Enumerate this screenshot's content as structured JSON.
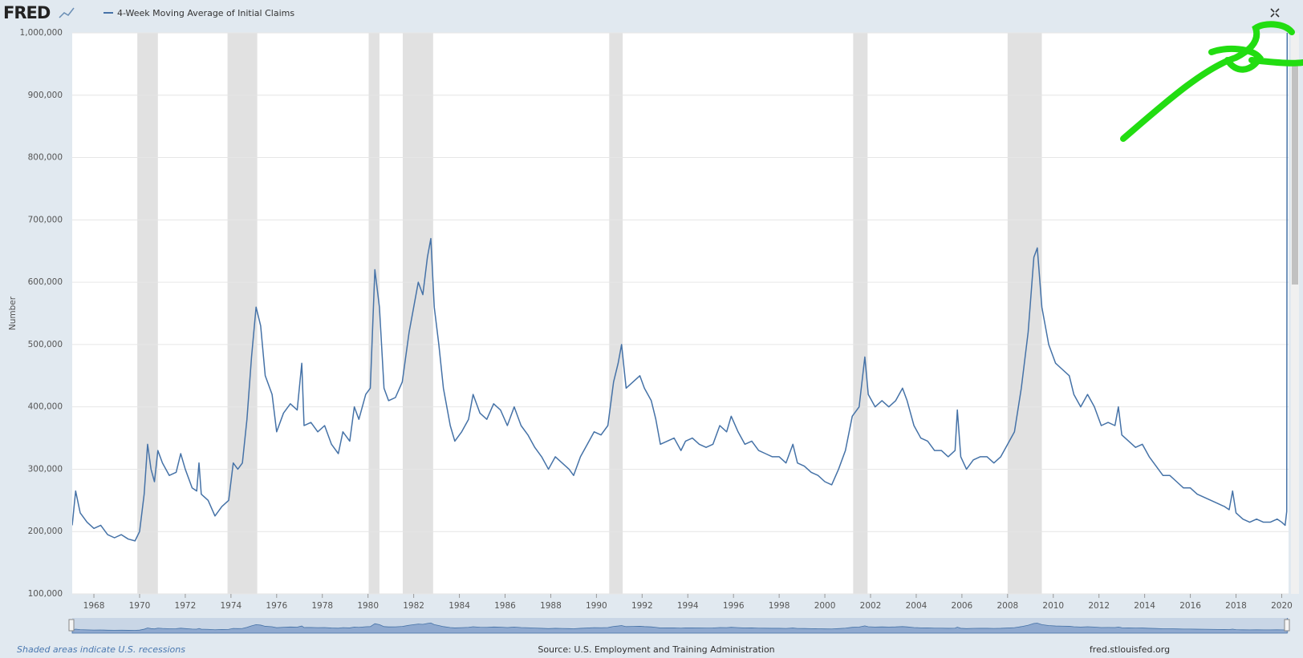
{
  "chart_data": {
    "type": "line",
    "logo": "FRED",
    "y_label": "Number",
    "recession_note": "Shaded areas indicate U.S. recessions",
    "source": "Source: U.S. Employment and Training Administration",
    "site": "fred.stlouisfed.org",
    "xlim": [
      1967.05,
      2020.3
    ],
    "ylim": [
      100000,
      1000000
    ],
    "xticks": [
      1968,
      1970,
      1972,
      1974,
      1976,
      1978,
      1980,
      1982,
      1984,
      1986,
      1988,
      1990,
      1992,
      1994,
      1996,
      1998,
      2000,
      2002,
      2004,
      2006,
      2008,
      2010,
      2012,
      2014,
      2016,
      2018,
      2020
    ],
    "yticks": [
      {
        "value": 100000,
        "label": "100,000"
      },
      {
        "value": 200000,
        "label": "200,000"
      },
      {
        "value": 300000,
        "label": "300,000"
      },
      {
        "value": 400000,
        "label": "400,000"
      },
      {
        "value": 500000,
        "label": "500,000"
      },
      {
        "value": 600000,
        "label": "600,000"
      },
      {
        "value": 700000,
        "label": "700,000"
      },
      {
        "value": 800000,
        "label": "800,000"
      },
      {
        "value": 900000,
        "label": "900,000"
      },
      {
        "value": 1000000,
        "label": "1,000,000"
      }
    ],
    "grid": true,
    "recession_color": "#e1e1e1",
    "recessions": [
      [
        1969.9,
        1970.8
      ],
      [
        1973.85,
        1975.15
      ],
      [
        1980.03,
        1980.5
      ],
      [
        1981.52,
        1982.85
      ],
      [
        1990.56,
        1991.15
      ],
      [
        2001.24,
        2001.87
      ],
      [
        2008.0,
        2009.5
      ]
    ],
    "x": [
      1967.05,
      1967.2,
      1967.4,
      1967.7,
      1968.0,
      1968.3,
      1968.6,
      1968.9,
      1969.2,
      1969.5,
      1969.8,
      1970.0,
      1970.2,
      1970.35,
      1970.5,
      1970.65,
      1970.8,
      1971.0,
      1971.3,
      1971.6,
      1971.8,
      1972.0,
      1972.3,
      1972.5,
      1972.6,
      1972.7,
      1973.0,
      1973.3,
      1973.6,
      1973.9,
      1974.1,
      1974.3,
      1974.5,
      1974.7,
      1974.9,
      1975.1,
      1975.3,
      1975.5,
      1975.8,
      1976.0,
      1976.3,
      1976.6,
      1976.9,
      1977.1,
      1977.2,
      1977.5,
      1977.8,
      1978.1,
      1978.4,
      1978.7,
      1978.9,
      1979.2,
      1979.4,
      1979.6,
      1979.9,
      1980.1,
      1980.3,
      1980.5,
      1980.7,
      1980.9,
      1981.2,
      1981.5,
      1981.8,
      1982.0,
      1982.2,
      1982.4,
      1982.6,
      1982.75,
      1982.9,
      1983.1,
      1983.3,
      1983.6,
      1983.8,
      1984.1,
      1984.4,
      1984.6,
      1984.9,
      1985.2,
      1985.5,
      1985.8,
      1986.1,
      1986.4,
      1986.7,
      1987.0,
      1987.3,
      1987.6,
      1987.9,
      1988.2,
      1988.5,
      1988.8,
      1989.0,
      1989.3,
      1989.6,
      1989.9,
      1990.2,
      1990.5,
      1990.75,
      1990.95,
      1991.1,
      1991.3,
      1991.6,
      1991.9,
      1992.1,
      1992.4,
      1992.6,
      1992.8,
      1993.1,
      1993.4,
      1993.7,
      1993.9,
      1994.2,
      1994.5,
      1994.8,
      1995.1,
      1995.4,
      1995.7,
      1995.9,
      1996.2,
      1996.5,
      1996.8,
      1997.1,
      1997.4,
      1997.7,
      1998.0,
      1998.3,
      1998.6,
      1998.8,
      1999.1,
      1999.4,
      1999.7,
      2000.0,
      2000.3,
      2000.6,
      2000.9,
      2001.2,
      2001.5,
      2001.75,
      2001.9,
      2002.2,
      2002.5,
      2002.8,
      2003.1,
      2003.4,
      2003.6,
      2003.9,
      2004.2,
      2004.5,
      2004.8,
      2005.1,
      2005.4,
      2005.7,
      2005.8,
      2005.95,
      2006.2,
      2006.5,
      2006.8,
      2007.1,
      2007.4,
      2007.7,
      2008.0,
      2008.3,
      2008.6,
      2008.9,
      2009.15,
      2009.3,
      2009.5,
      2009.8,
      2010.1,
      2010.4,
      2010.7,
      2010.9,
      2011.2,
      2011.5,
      2011.8,
      2012.1,
      2012.4,
      2012.7,
      2012.85,
      2013.0,
      2013.3,
      2013.6,
      2013.9,
      2014.2,
      2014.5,
      2014.8,
      2015.1,
      2015.4,
      2015.7,
      2016.0,
      2016.3,
      2016.6,
      2016.9,
      2017.2,
      2017.5,
      2017.7,
      2017.85,
      2018.0,
      2018.3,
      2018.6,
      2018.9,
      2019.2,
      2019.5,
      2019.8,
      2020.0,
      2020.15,
      2020.22,
      2020.24
    ],
    "series": [
      {
        "name": "4-Week Moving Average of Initial Claims",
        "color": "#4572a7",
        "values": [
          210000,
          265000,
          230000,
          215000,
          205000,
          210000,
          195000,
          190000,
          195000,
          188000,
          185000,
          200000,
          260000,
          340000,
          300000,
          280000,
          330000,
          310000,
          290000,
          295000,
          325000,
          300000,
          270000,
          265000,
          310000,
          260000,
          250000,
          225000,
          240000,
          250000,
          310000,
          300000,
          310000,
          380000,
          480000,
          560000,
          530000,
          450000,
          420000,
          360000,
          390000,
          405000,
          395000,
          470000,
          370000,
          375000,
          360000,
          370000,
          340000,
          325000,
          360000,
          345000,
          400000,
          380000,
          420000,
          430000,
          620000,
          560000,
          430000,
          410000,
          415000,
          440000,
          520000,
          560000,
          600000,
          580000,
          640000,
          670000,
          560000,
          500000,
          430000,
          370000,
          345000,
          360000,
          380000,
          420000,
          390000,
          380000,
          405000,
          395000,
          370000,
          400000,
          370000,
          355000,
          335000,
          320000,
          300000,
          320000,
          310000,
          300000,
          290000,
          320000,
          340000,
          360000,
          355000,
          370000,
          440000,
          470000,
          500000,
          430000,
          440000,
          450000,
          430000,
          410000,
          380000,
          340000,
          345000,
          350000,
          330000,
          345000,
          350000,
          340000,
          335000,
          340000,
          370000,
          360000,
          385000,
          360000,
          340000,
          345000,
          330000,
          325000,
          320000,
          320000,
          310000,
          340000,
          310000,
          305000,
          295000,
          290000,
          280000,
          275000,
          300000,
          330000,
          385000,
          400000,
          480000,
          420000,
          400000,
          410000,
          400000,
          410000,
          430000,
          410000,
          370000,
          350000,
          345000,
          330000,
          330000,
          320000,
          330000,
          395000,
          320000,
          300000,
          315000,
          320000,
          320000,
          310000,
          320000,
          340000,
          360000,
          430000,
          520000,
          640000,
          655000,
          560000,
          500000,
          470000,
          460000,
          450000,
          420000,
          400000,
          420000,
          400000,
          370000,
          375000,
          370000,
          400000,
          355000,
          345000,
          335000,
          340000,
          320000,
          305000,
          290000,
          290000,
          280000,
          270000,
          270000,
          260000,
          255000,
          250000,
          245000,
          240000,
          235000,
          265000,
          230000,
          220000,
          215000,
          220000,
          215000,
          215000,
          220000,
          215000,
          210000,
          232250,
          1001750
        ]
      }
    ]
  }
}
